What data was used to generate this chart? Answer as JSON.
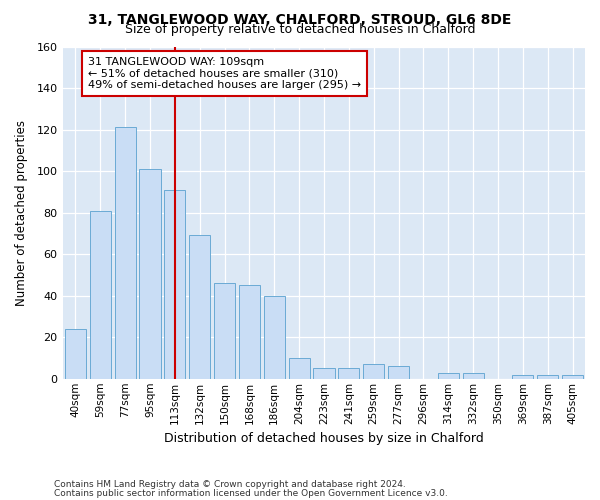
{
  "title1": "31, TANGLEWOOD WAY, CHALFORD, STROUD, GL6 8DE",
  "title2": "Size of property relative to detached houses in Chalford",
  "xlabel": "Distribution of detached houses by size in Chalford",
  "ylabel": "Number of detached properties",
  "categories": [
    "40sqm",
    "59sqm",
    "77sqm",
    "95sqm",
    "113sqm",
    "132sqm",
    "150sqm",
    "168sqm",
    "186sqm",
    "204sqm",
    "223sqm",
    "241sqm",
    "259sqm",
    "277sqm",
    "296sqm",
    "314sqm",
    "332sqm",
    "350sqm",
    "369sqm",
    "387sqm",
    "405sqm"
  ],
  "values": [
    24,
    81,
    121,
    101,
    91,
    69,
    46,
    45,
    40,
    10,
    5,
    5,
    7,
    6,
    0,
    3,
    3,
    0,
    2,
    2,
    2
  ],
  "bar_color": "#c9ddf5",
  "bar_edge_color": "#6aaad4",
  "vline_x_index": 4,
  "vline_color": "#cc0000",
  "annotation_text": "31 TANGLEWOOD WAY: 109sqm\n← 51% of detached houses are smaller (310)\n49% of semi-detached houses are larger (295) →",
  "annotation_box_color": "#ffffff",
  "annotation_box_edge": "#cc0000",
  "ylim": [
    0,
    160
  ],
  "yticks": [
    0,
    20,
    40,
    60,
    80,
    100,
    120,
    140,
    160
  ],
  "footer1": "Contains HM Land Registry data © Crown copyright and database right 2024.",
  "footer2": "Contains public sector information licensed under the Open Government Licence v3.0.",
  "bg_color": "#ffffff",
  "plot_bg_color": "#dce8f5",
  "grid_color": "#ffffff"
}
